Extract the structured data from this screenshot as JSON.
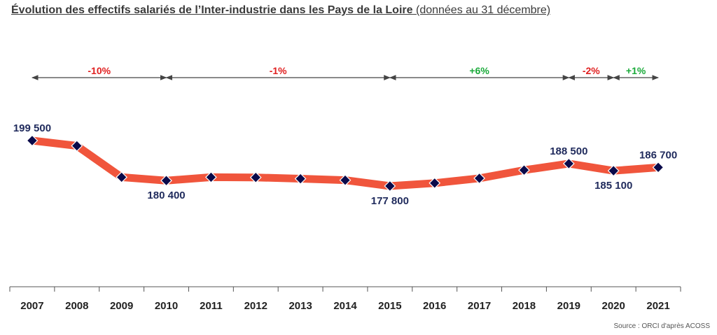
{
  "title": {
    "main": "Évolution des effectifs salariés de l’Inter-industrie dans les Pays de la Loire",
    "sub": "(données au 31 décembre)"
  },
  "source": "Source : ORCI d'après ACOSS",
  "colors": {
    "line": "#f0553c",
    "marker": "#0a0a4a",
    "label": "#1f2a5c",
    "negative": "#e02020",
    "positive": "#1aaa3a",
    "axis": "#555555",
    "arrow": "#444444"
  },
  "chart_data": {
    "type": "line",
    "categories": [
      "2007",
      "2008",
      "2009",
      "2010",
      "2011",
      "2012",
      "2013",
      "2014",
      "2015",
      "2016",
      "2017",
      "2018",
      "2019",
      "2020",
      "2021"
    ],
    "values": [
      199500,
      197000,
      182000,
      180400,
      182000,
      181900,
      181300,
      180600,
      177800,
      179200,
      181500,
      185400,
      188500,
      185100,
      186700
    ],
    "data_labels": [
      {
        "year": "2007",
        "text": "199 500",
        "position": "above"
      },
      {
        "year": "2010",
        "text": "180 400",
        "position": "below"
      },
      {
        "year": "2015",
        "text": "177 800",
        "position": "below"
      },
      {
        "year": "2019",
        "text": "188 500",
        "position": "above"
      },
      {
        "year": "2020",
        "text": "185 100",
        "position": "below"
      },
      {
        "year": "2021",
        "text": "186 700",
        "position": "above"
      }
    ],
    "periods": [
      {
        "from": "2007",
        "to": "2010",
        "label": "-10%",
        "sign": "negative"
      },
      {
        "from": "2010",
        "to": "2015",
        "label": "-1%",
        "sign": "negative"
      },
      {
        "from": "2015",
        "to": "2019",
        "label": "+6%",
        "sign": "positive"
      },
      {
        "from": "2019",
        "to": "2020",
        "label": "-2%",
        "sign": "negative"
      },
      {
        "from": "2020",
        "to": "2021",
        "label": "+1%",
        "sign": "positive"
      }
    ],
    "grid": false,
    "legend": "none"
  }
}
